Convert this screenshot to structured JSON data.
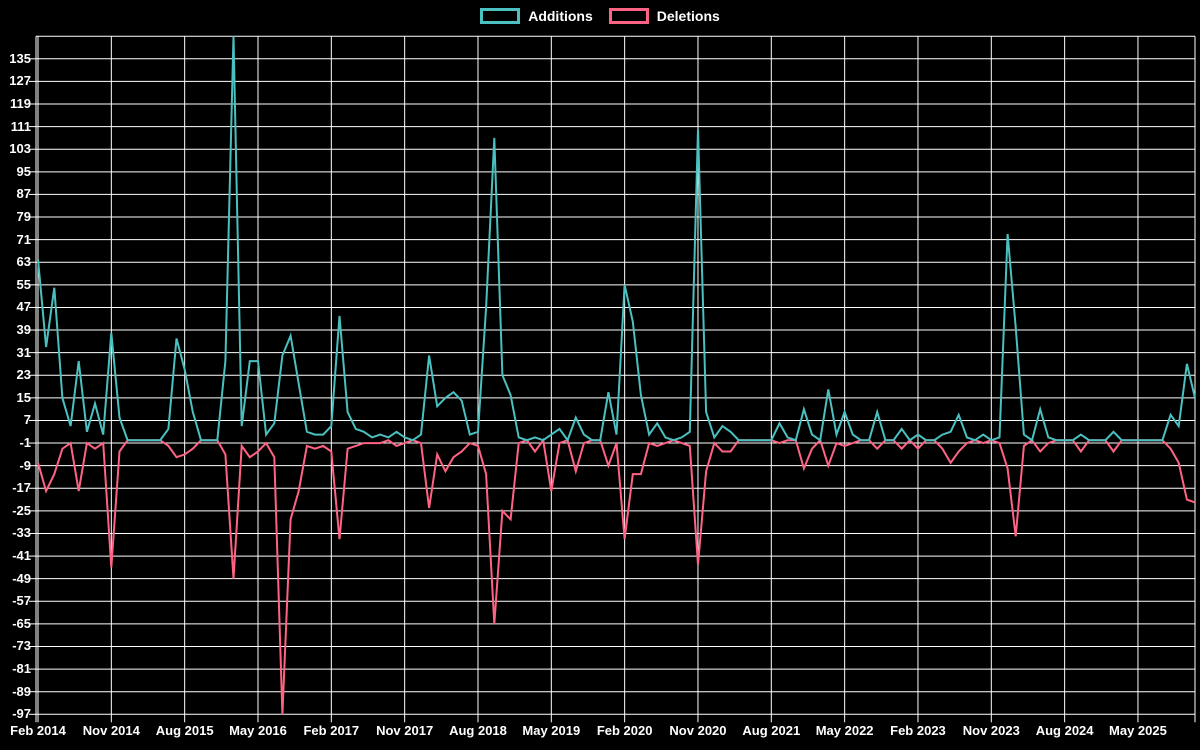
{
  "window": {
    "background": "#000000"
  },
  "legend": {
    "items": [
      {
        "label": "Additions",
        "color": "#4bc0c0"
      },
      {
        "label": "Deletions",
        "color": "#ff6384"
      }
    ]
  },
  "chart_data": {
    "type": "line",
    "title": "",
    "grid": true,
    "legend_position": "top",
    "background_color": "#000000",
    "grid_color": "#ffffff",
    "text_color": "#ffffff",
    "x_start": "Feb 2014",
    "x_end": "Dec 2025",
    "x_unit": "month",
    "months_per_tick": 9,
    "x_tick_labels": [
      "Feb 2014",
      "Nov 2014",
      "Aug 2015",
      "May 2016",
      "Feb 2017",
      "Nov 2017",
      "Aug 2018",
      "May 2019",
      "Feb 2020",
      "Nov 2020",
      "Aug 2021",
      "May 2022",
      "Feb 2023",
      "Nov 2023",
      "Aug 2024",
      "May 2025"
    ],
    "y_tick_labels": [
      135,
      127,
      119,
      111,
      103,
      95,
      87,
      79,
      71,
      63,
      55,
      47,
      39,
      31,
      23,
      15,
      7,
      -1,
      -9,
      -17,
      -25,
      -33,
      -41,
      -49,
      -57,
      -65,
      -73,
      -81,
      -89,
      -97
    ],
    "y_max": 143,
    "y_min": -97,
    "y_step": 8,
    "series": [
      {
        "name": "Additions",
        "color": "#4bc0c0",
        "values": [
          64,
          33,
          54,
          15,
          5,
          28,
          3,
          13,
          2,
          38,
          8,
          0,
          0,
          0,
          0,
          0,
          4,
          36,
          25,
          10,
          0,
          0,
          0,
          28,
          143,
          5,
          28,
          28,
          2,
          6,
          30,
          37,
          20,
          3,
          2,
          2,
          5,
          44,
          10,
          4,
          3,
          1,
          2,
          1,
          3,
          1,
          0,
          2,
          30,
          12,
          15,
          17,
          14,
          2,
          3,
          47,
          107,
          23,
          16,
          1,
          0,
          1,
          0,
          2,
          4,
          0,
          8,
          2,
          0,
          0,
          17,
          2,
          55,
          42,
          16,
          2,
          6,
          1,
          0,
          1,
          3,
          110,
          10,
          1,
          5,
          3,
          0,
          0,
          0,
          0,
          0,
          6,
          1,
          0,
          11,
          2,
          0,
          18,
          2,
          10,
          2,
          0,
          0,
          10,
          0,
          0,
          4,
          0,
          2,
          0,
          0,
          2,
          3,
          9,
          1,
          0,
          2,
          0,
          1,
          73,
          40,
          2,
          0,
          11,
          1,
          0,
          0,
          0,
          2,
          0,
          0,
          0,
          3,
          0,
          0,
          0,
          0,
          0,
          0,
          9,
          5,
          27,
          15
        ]
      },
      {
        "name": "Deletions",
        "color": "#ff6384",
        "values": [
          -8,
          -18,
          -12,
          -3,
          -1,
          -18,
          -1,
          -3,
          -1,
          -45,
          -4,
          0,
          0,
          0,
          0,
          0,
          -2,
          -6,
          -5,
          -3,
          0,
          0,
          0,
          -5,
          -49,
          -2,
          -6,
          -4,
          -1,
          -6,
          -97,
          -28,
          -18,
          -2,
          -3,
          -2,
          -4,
          -35,
          -3,
          -2,
          -1,
          -1,
          -1,
          0,
          -2,
          -1,
          0,
          -1,
          -24,
          -5,
          -11,
          -6,
          -4,
          -1,
          -2,
          -12,
          -65,
          -25,
          -28,
          -1,
          0,
          -4,
          0,
          -18,
          -1,
          0,
          -11,
          -1,
          0,
          0,
          -9,
          -1,
          -35,
          -12,
          -12,
          -1,
          -2,
          -1,
          0,
          -1,
          -2,
          -44,
          -11,
          -1,
          -4,
          -4,
          0,
          0,
          0,
          0,
          0,
          -1,
          0,
          0,
          -10,
          -3,
          0,
          -9,
          -1,
          -2,
          -1,
          0,
          0,
          -3,
          0,
          0,
          -3,
          0,
          -3,
          0,
          0,
          -3,
          -8,
          -4,
          -1,
          0,
          -1,
          0,
          -1,
          -10,
          -34,
          -2,
          0,
          -4,
          -1,
          0,
          0,
          0,
          -4,
          0,
          0,
          0,
          -4,
          0,
          0,
          0,
          0,
          0,
          0,
          -3,
          -8,
          -21,
          -22
        ]
      }
    ]
  }
}
